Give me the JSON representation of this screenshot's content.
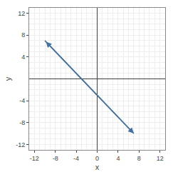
{
  "chart_data": {
    "type": "line",
    "x": [
      -10,
      7
    ],
    "values": [
      7,
      -10
    ],
    "color": "#4472a0",
    "xlabel": "x",
    "ylabel": "y",
    "xlim": [
      -13,
      13
    ],
    "ylim": [
      -13,
      13
    ],
    "xticks": [
      -12,
      -8,
      -4,
      0,
      4,
      8,
      12
    ],
    "yticks": [
      -12,
      -8,
      -4,
      4,
      8,
      12
    ],
    "grid": true
  }
}
